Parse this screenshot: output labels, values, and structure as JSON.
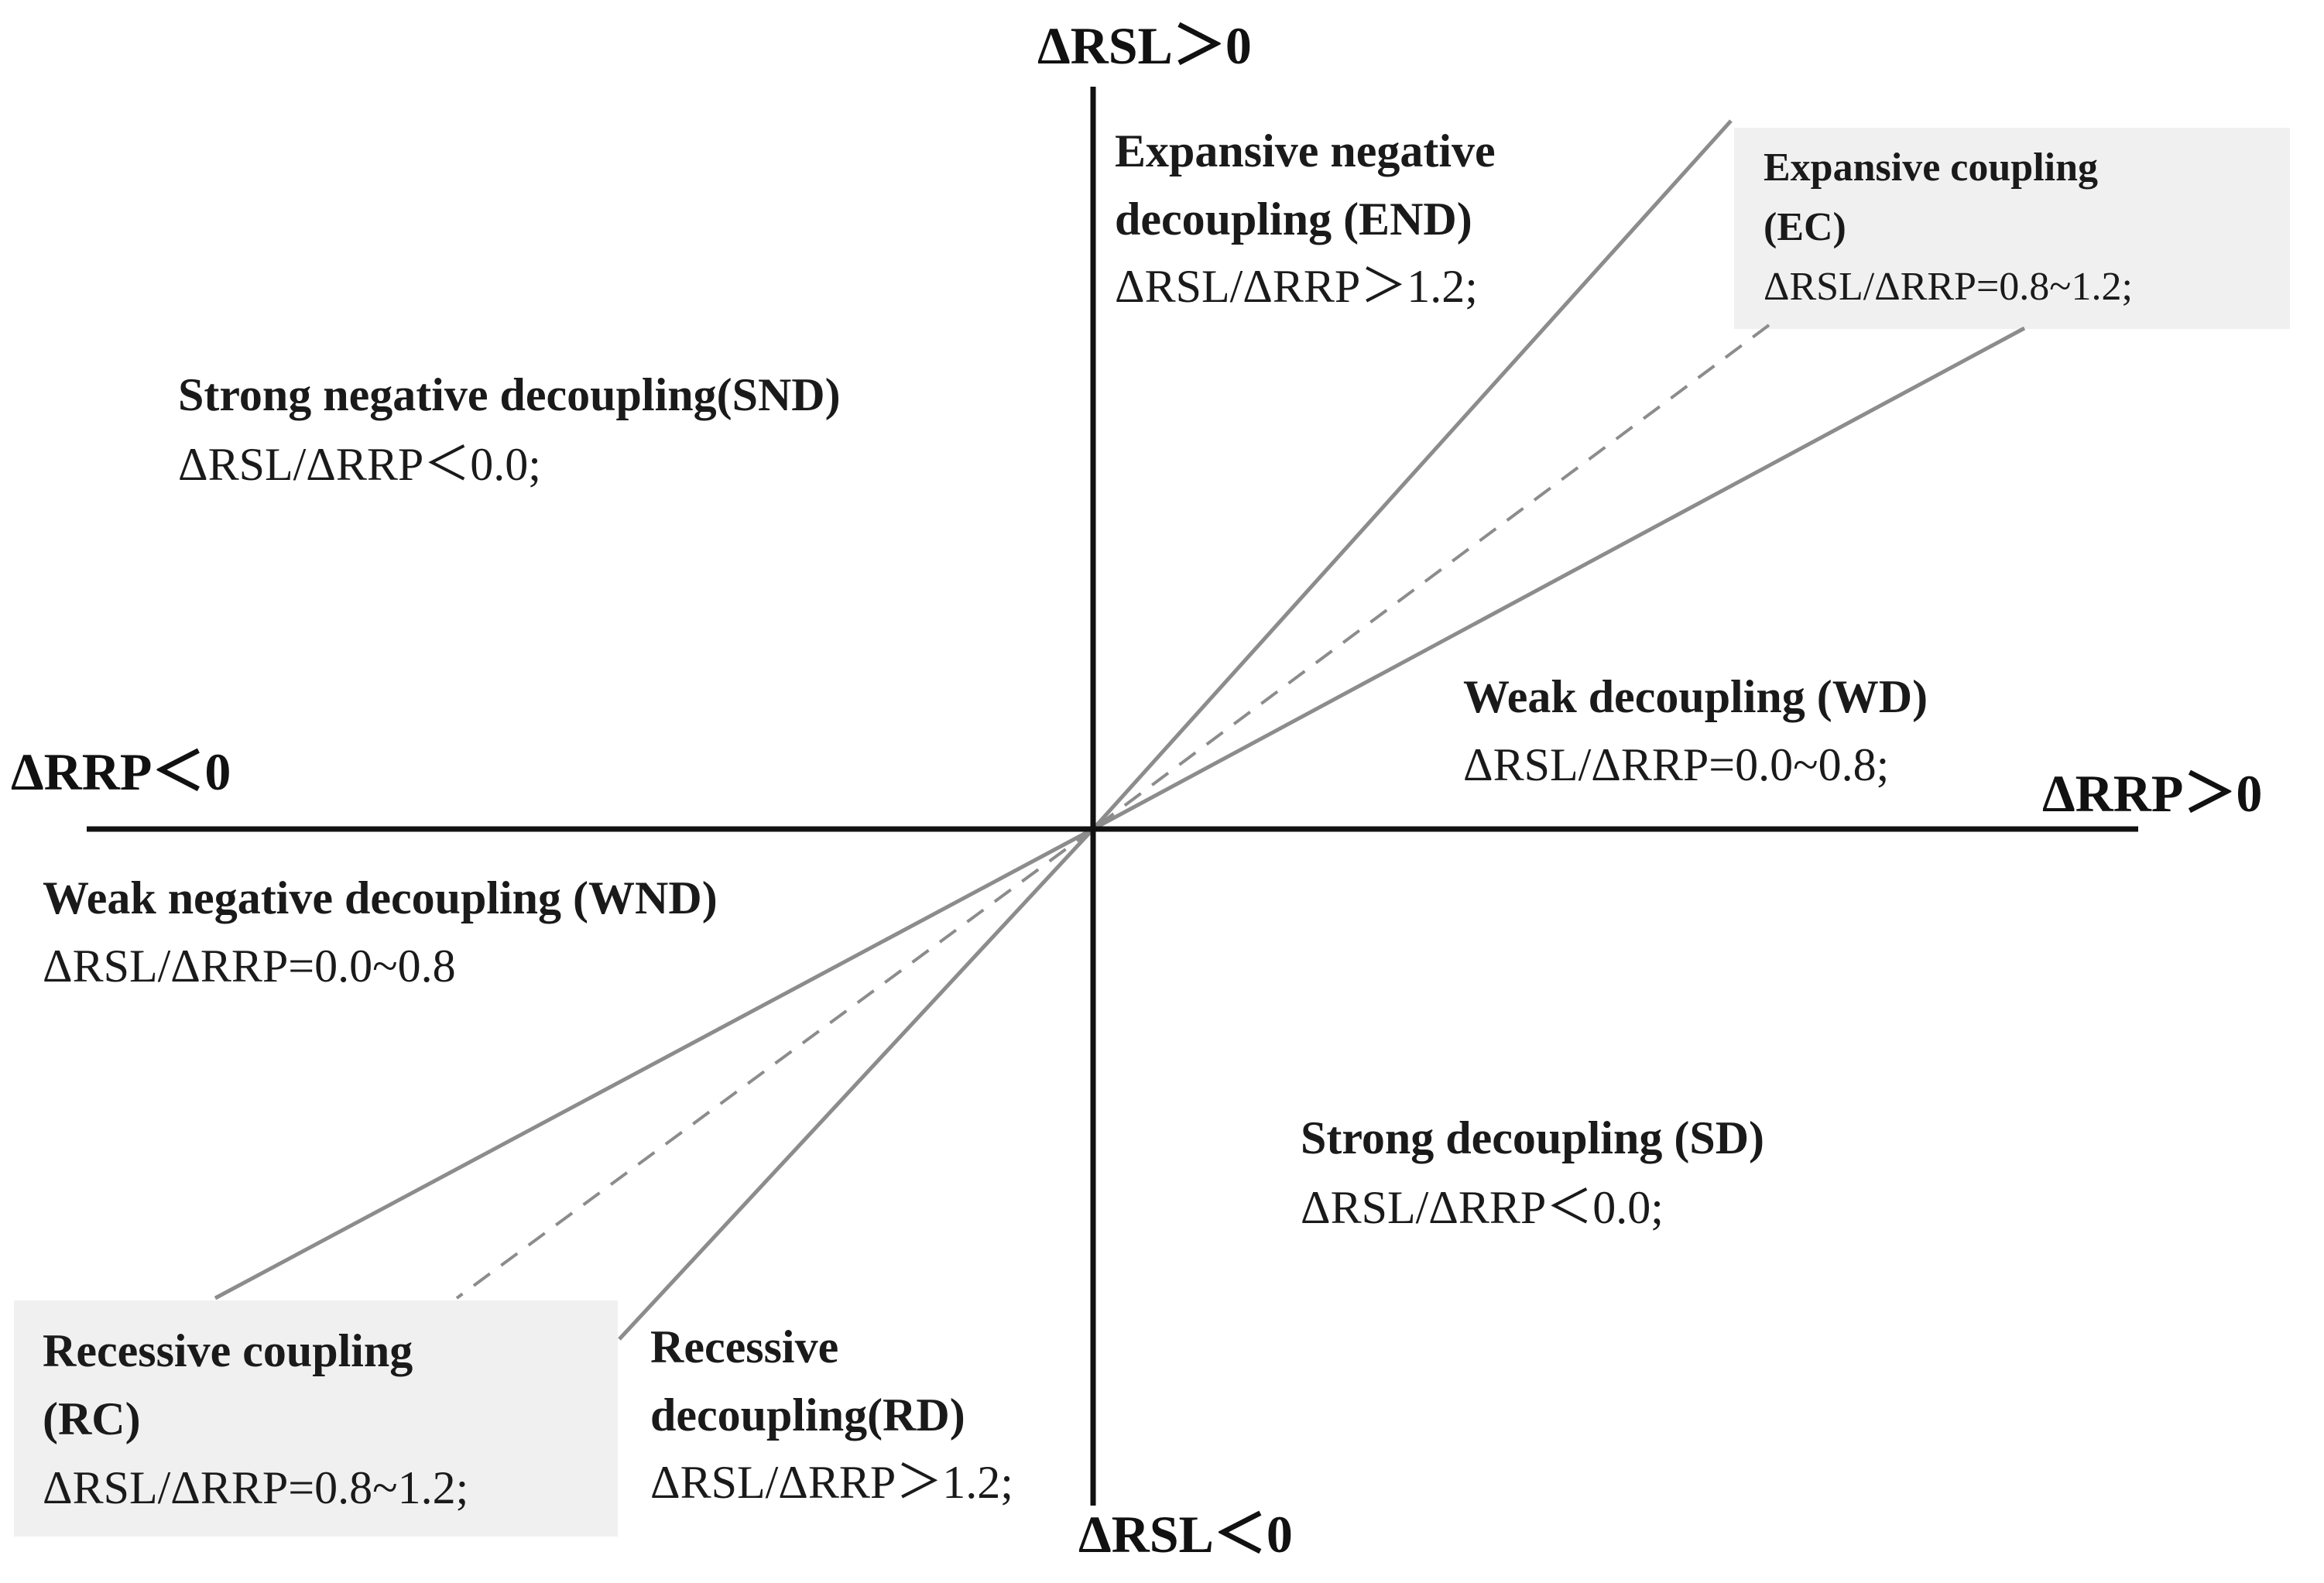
{
  "axes": {
    "top": "ΔRSL＞0",
    "bottom": "ΔRSL＜0",
    "left": "ΔRRP＜0",
    "right": "ΔRRP＞0"
  },
  "regions": {
    "end": {
      "line1": "Expansive negative",
      "line2": "decoupling (END)",
      "ratio": "ΔRSL/ΔRRP＞1.2;"
    },
    "ec": {
      "line1": "Expansive coupling",
      "line2": "(EC)",
      "ratio": "ΔRSL/ΔRRP=0.8~1.2;"
    },
    "snd": {
      "line1": "Strong negative decoupling(SND)",
      "ratio": "ΔRSL/ΔRRP＜0.0;"
    },
    "wd": {
      "line1": "Weak decoupling (WD)",
      "ratio": "ΔRSL/ΔRRP=0.0~0.8;"
    },
    "wnd": {
      "line1": "Weak negative decoupling (WND)",
      "ratio": "ΔRSL/ΔRRP=0.0~0.8"
    },
    "sd": {
      "line1": "Strong decoupling (SD)",
      "ratio": "ΔRSL/ΔRRP＜0.0;"
    },
    "rc": {
      "line1": "Recessive coupling",
      "line2": "(RC)",
      "ratio": "ΔRSL/ΔRRP=0.8~1.2;"
    },
    "rd": {
      "line1": "Recessive",
      "line2": "decoupling(RD)",
      "ratio": "ΔRSL/ΔRRP＞1.2;"
    }
  },
  "colors": {
    "axis": "#111111",
    "boundary": "#8c8c8c",
    "highlight_box": "#f0f0f0"
  }
}
